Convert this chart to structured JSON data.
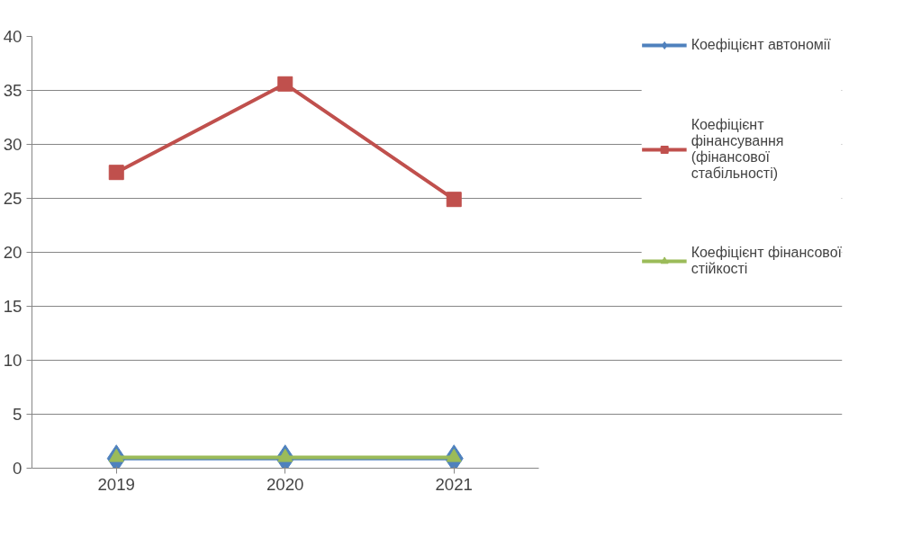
{
  "chart_data": {
    "type": "line",
    "categories": [
      "2019",
      "2020",
      "2021"
    ],
    "series": [
      {
        "name": "Коефіцієнт автономії",
        "color": "#4f81bd",
        "marker": "diamond",
        "values": [
          0.9,
          0.9,
          0.9
        ]
      },
      {
        "name": "Коефіцієнт фінансування (фінансової стабільності)",
        "color": "#c0504d",
        "marker": "square",
        "values": [
          27.4,
          35.6,
          24.9
        ]
      },
      {
        "name": "Коефіцієнт фінансової стійкості",
        "color": "#9bbb59",
        "marker": "triangle",
        "values": [
          1.0,
          1.0,
          1.0
        ]
      }
    ],
    "ylim": [
      0,
      40
    ],
    "yticks": [
      0,
      5,
      10,
      15,
      20,
      25,
      30,
      35,
      40
    ],
    "grid": "y",
    "legend": "right",
    "line_style": "solid"
  }
}
